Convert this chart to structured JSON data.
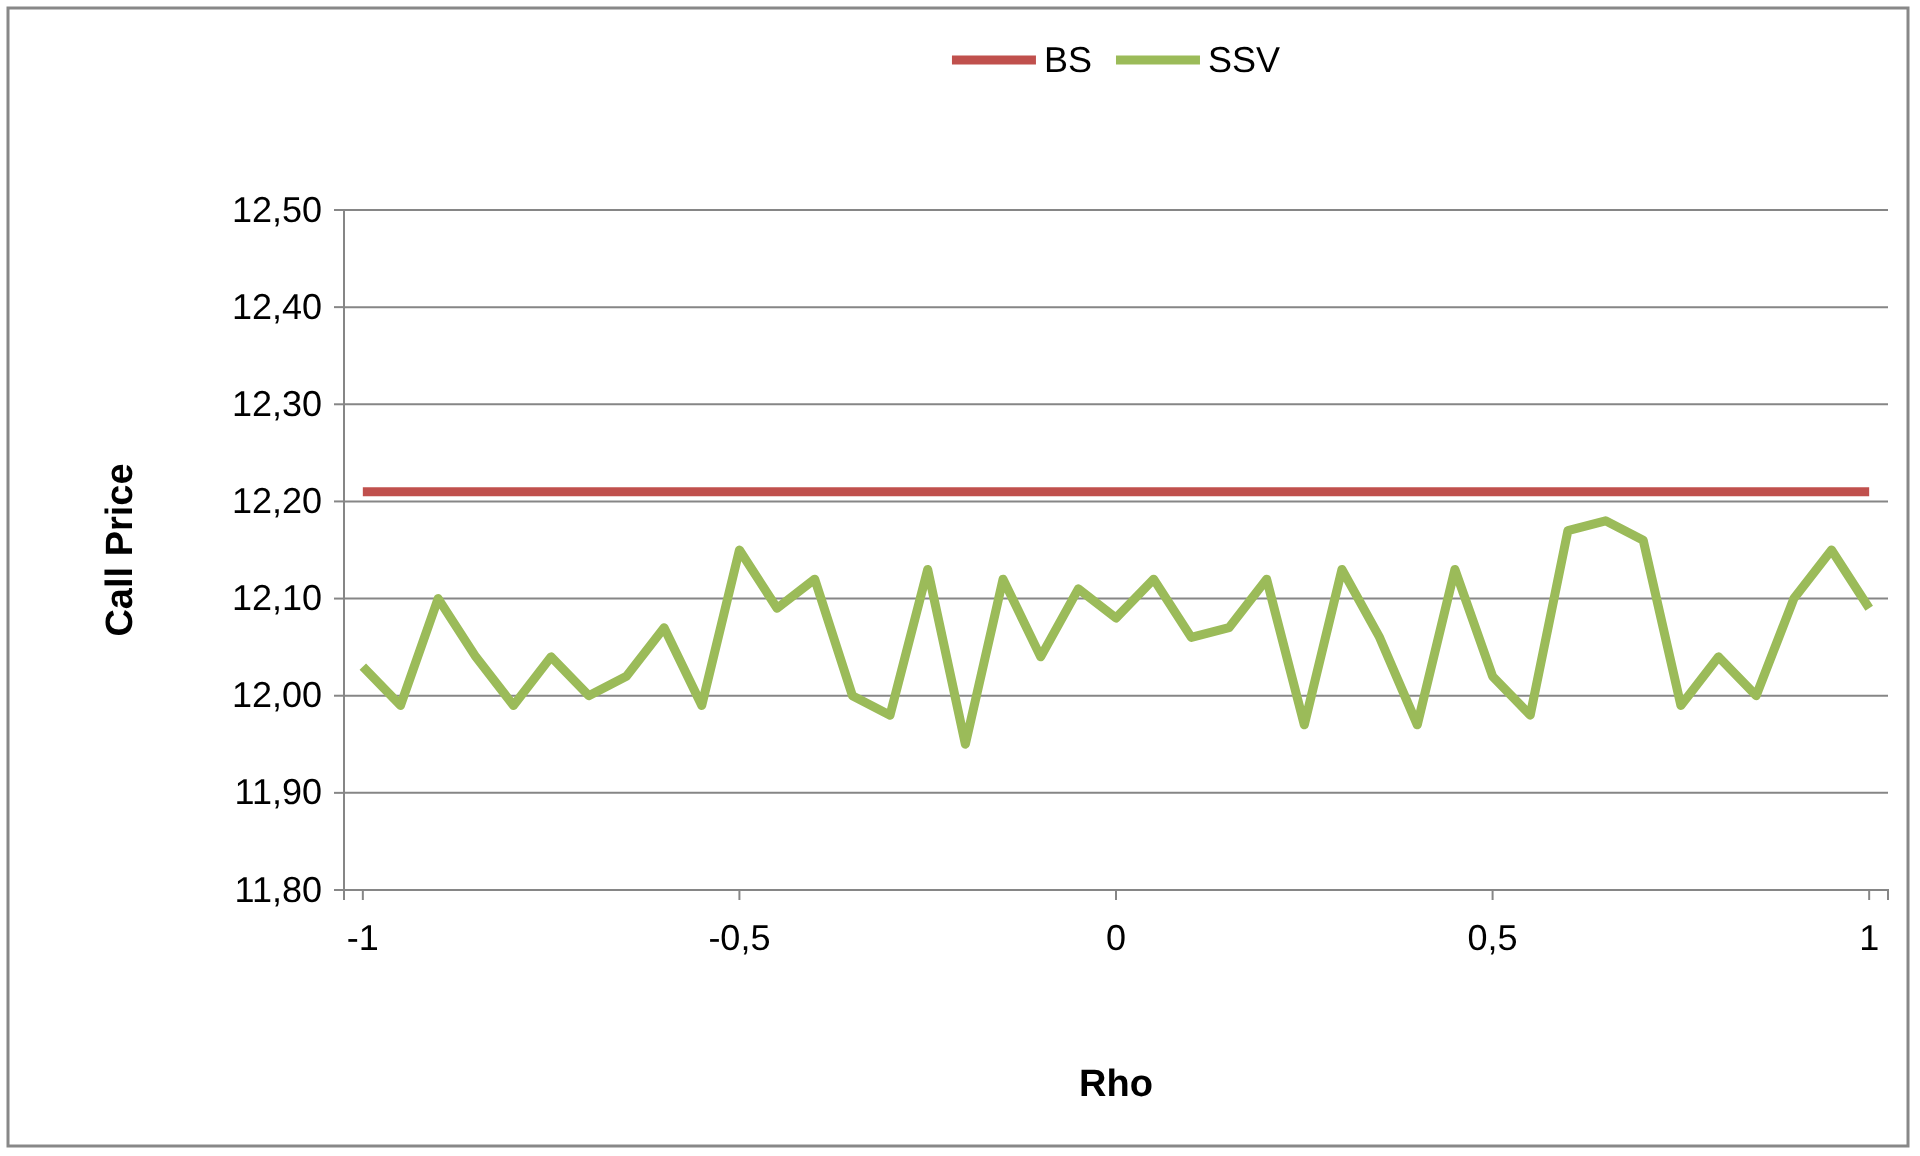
{
  "chart_data": {
    "type": "line",
    "xlabel": "Rho",
    "ylabel": "Call Price",
    "legend": "top",
    "grid": "y",
    "xlim": [
      -1.025,
      1.025
    ],
    "xticks": [
      {
        "value": -1,
        "label": "-1"
      },
      {
        "value": -0.5,
        "label": "-0,5"
      },
      {
        "value": 0,
        "label": "0"
      },
      {
        "value": 0.5,
        "label": "0,5"
      },
      {
        "value": 1,
        "label": "1"
      }
    ],
    "ylim": [
      11.8,
      12.5
    ],
    "yticks": [
      {
        "value": 11.8,
        "label": "11,80"
      },
      {
        "value": 11.9,
        "label": "11,90"
      },
      {
        "value": 12.0,
        "label": "12,00"
      },
      {
        "value": 12.1,
        "label": "12,10"
      },
      {
        "value": 12.2,
        "label": "12,20"
      },
      {
        "value": 12.3,
        "label": "12,30"
      },
      {
        "value": 12.4,
        "label": "12,40"
      },
      {
        "value": 12.5,
        "label": "12,50"
      }
    ],
    "x": [
      -1,
      -0.95,
      -0.9,
      -0.85,
      -0.8,
      -0.75,
      -0.7,
      -0.65,
      -0.6,
      -0.55,
      -0.5,
      -0.45,
      -0.4,
      -0.35,
      -0.3,
      -0.25,
      -0.2,
      -0.15,
      -0.1,
      -0.05,
      0,
      0.05,
      0.1,
      0.15,
      0.2,
      0.25,
      0.3,
      0.35,
      0.4,
      0.45,
      0.5,
      0.55,
      0.6,
      0.65,
      0.7,
      0.75,
      0.8,
      0.85,
      0.9,
      0.95,
      1
    ],
    "series": [
      {
        "name": "BS",
        "color": "#c0504d",
        "x": [
          -1,
          1
        ],
        "values": [
          12.21,
          12.21
        ]
      },
      {
        "name": "SSV",
        "color": "#9bbb59",
        "values": [
          12.03,
          11.99,
          12.1,
          12.04,
          11.99,
          12.04,
          12.0,
          12.02,
          12.07,
          11.99,
          12.15,
          12.09,
          12.12,
          12.0,
          11.98,
          12.13,
          11.95,
          12.12,
          12.04,
          12.11,
          12.08,
          12.12,
          12.06,
          12.07,
          12.12,
          11.97,
          12.13,
          12.06,
          11.97,
          12.13,
          12.02,
          11.98,
          12.17,
          12.18,
          12.16,
          11.99,
          12.04,
          12.0,
          12.1,
          12.15,
          12.09
        ]
      }
    ]
  }
}
